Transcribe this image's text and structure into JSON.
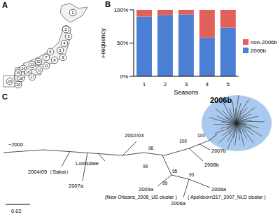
{
  "chart_data": {
    "type": "bar",
    "title": "B",
    "stacked": true,
    "x_label": "Seasons",
    "y_label": "Frequency",
    "categories": [
      "1",
      "2",
      "3",
      "4",
      "5"
    ],
    "series": [
      {
        "name": "2006b",
        "color": "#4a7fd4",
        "values": [
          90,
          92,
          93,
          58,
          73
        ]
      },
      {
        "name": "non-2006b",
        "color": "#e2605a",
        "values": [
          10,
          8,
          7,
          42,
          27
        ]
      }
    ],
    "ylim": [
      0,
      100
    ],
    "yticks": [
      {
        "value": 0,
        "label": "0%"
      },
      {
        "value": 50,
        "label": "50%"
      },
      {
        "value": 100,
        "label": "100%"
      }
    ],
    "legend": "right",
    "grid": false
  },
  "map": {
    "title": "A",
    "regions": [
      "1",
      "2",
      "3",
      "4",
      "5",
      "6",
      "7",
      "8",
      "9",
      "10",
      "11",
      "12",
      "13",
      "14",
      "15",
      "16",
      "17",
      "18",
      "19",
      "20"
    ]
  },
  "tree": {
    "title": "C",
    "clades": [
      {
        "label": "~2000"
      },
      {
        "label": "2004/05（Sakai）"
      },
      {
        "label": "Lordsdale"
      },
      {
        "label": "2007a"
      },
      {
        "label": "2002/03"
      },
      {
        "label": "2009a",
        "note": "(New Orleans_2008_US cluster )"
      },
      {
        "label": "2006a"
      },
      {
        "label": "2008a",
        "note": "( Apeldoorn317_2007_NLD cluster )"
      },
      {
        "label": "2007b"
      },
      {
        "label": "2008b"
      },
      {
        "label": "2006b"
      }
    ],
    "bootstrap": [
      96,
      99,
      100,
      100,
      95,
      93,
      99
    ],
    "scale_bar": "0.02"
  }
}
